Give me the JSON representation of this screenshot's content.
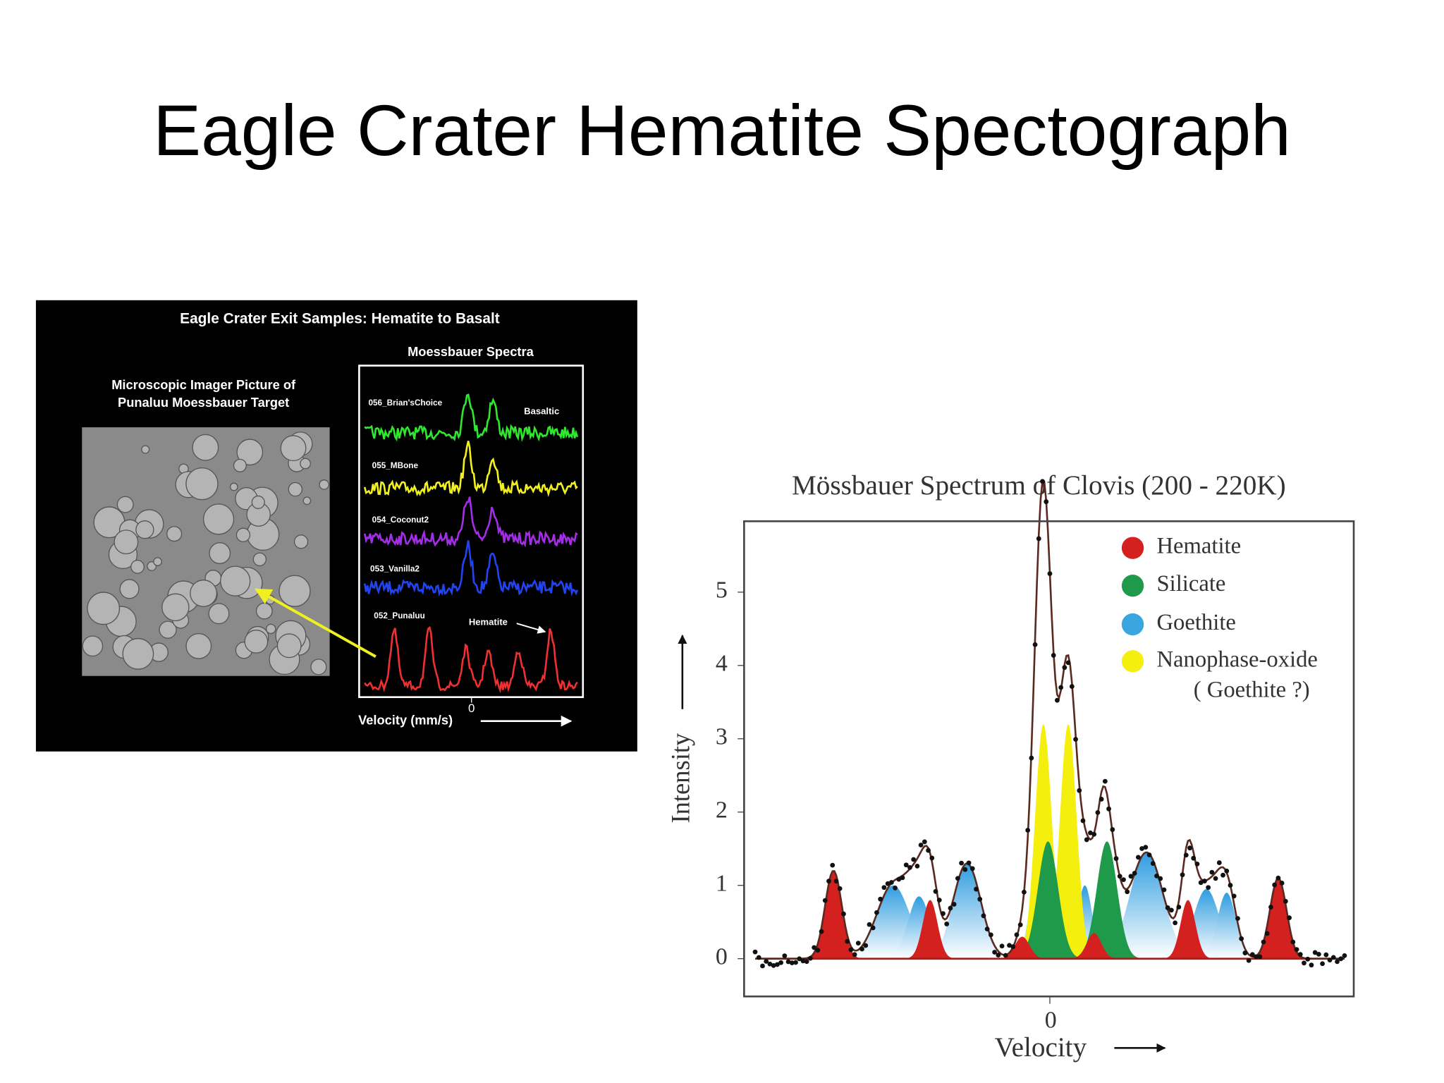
{
  "title": "Eagle Crater Hematite Spectograph",
  "left_figure": {
    "title": "Eagle Crater Exit Samples: Hematite to Basalt",
    "spectra_title": "Moessbauer Spectra",
    "image_caption": [
      "Microscopic Imager Picture of",
      "Punaluu Moessbauer Target"
    ],
    "spectra": [
      {
        "label": "056_Brian'sChoice",
        "color": "#2ee82e"
      },
      {
        "label": "055_MBone",
        "color": "#f2f01e"
      },
      {
        "label": "054_Coconut2",
        "color": "#a22ee6"
      },
      {
        "label": "053_Vanilla2",
        "color": "#2244f0"
      },
      {
        "label": "052_Punaluu",
        "color": "#ee3030"
      }
    ],
    "annotations": {
      "basaltic": "Basaltic",
      "hematite": "Hematite"
    },
    "x_tick": 0,
    "x_label": "Velocity  (mm/s)"
  },
  "right_figure": {
    "title": "Mössbauer Spectrum of Clovis (200 - 220K)",
    "legend": [
      {
        "label": "Hematite",
        "color": "#d4211f"
      },
      {
        "label": "Silicate",
        "color": "#1f9a4a"
      },
      {
        "label": "Goethite",
        "color": "#3aa6e0"
      },
      {
        "label": "Nanophase-oxide",
        "color": "#f5ef10"
      }
    ],
    "legend_note": "( Goethite ?)",
    "yticks": [
      0,
      1,
      2,
      3,
      4,
      5
    ],
    "y_label": "Intensity",
    "x_tick": 0,
    "x_label": "Velocity"
  }
}
